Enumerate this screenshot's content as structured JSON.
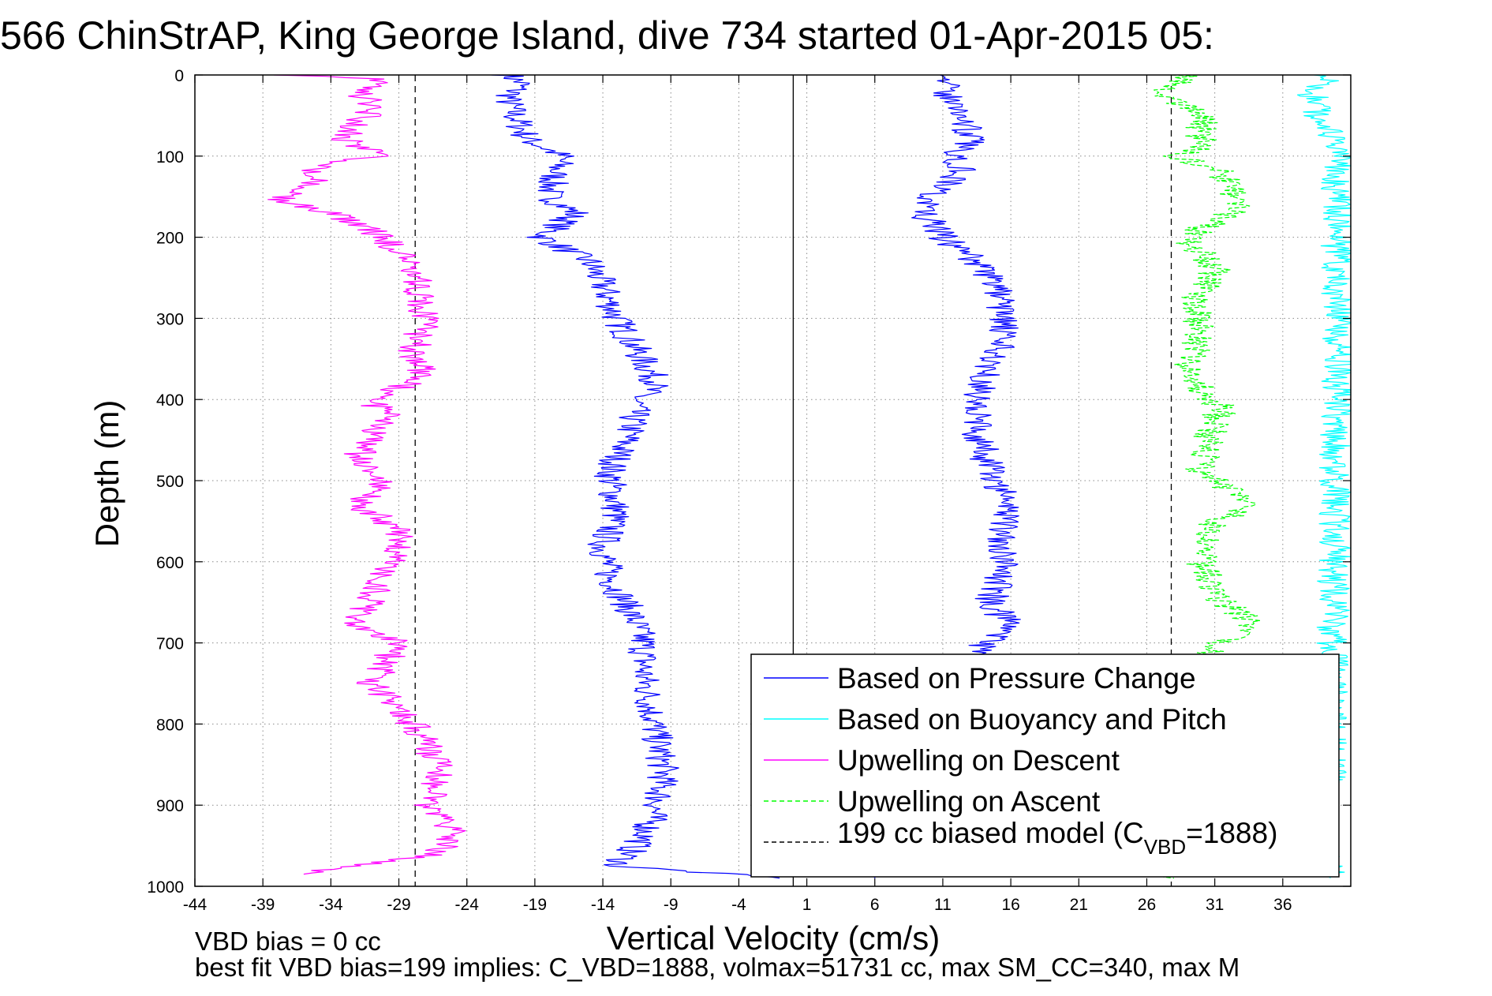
{
  "chart_data": {
    "type": "line",
    "title": "566 ChinStrAP, King George Island, dive 734 started 01-Apr-2015 05:",
    "xlabel": "Vertical Velocity (cm/s)",
    "ylabel": "Depth (m)",
    "xlim": [
      -44,
      41
    ],
    "ylim": [
      0,
      1000
    ],
    "y_reversed": true,
    "grid": true,
    "x_ticks": [
      -44,
      -39,
      -34,
      -29,
      -24,
      -19,
      -14,
      -9,
      -4,
      1,
      6,
      11,
      16,
      21,
      26,
      31,
      36
    ],
    "y_ticks": [
      0,
      100,
      200,
      300,
      400,
      500,
      600,
      700,
      800,
      900,
      1000
    ],
    "x_tick_labels": [
      "-44",
      "-39",
      "-34",
      "-29",
      "-24",
      "-19",
      "-14",
      "-9",
      "-4",
      "1",
      "6",
      "11",
      "16",
      "21",
      "26",
      "31",
      "36"
    ],
    "y_tick_labels": [
      "0",
      "100",
      "200",
      "300",
      "400",
      "500",
      "600",
      "700",
      "800",
      "900",
      "1000"
    ],
    "reference_lines": [
      {
        "type": "vertical",
        "x": 0,
        "color": "#000000",
        "style": "solid"
      },
      {
        "type": "vertical",
        "x": -27.8,
        "color": "#000000",
        "style": "dashed"
      },
      {
        "type": "vertical",
        "x": 27.8,
        "color": "#000000",
        "style": "dashed"
      }
    ],
    "legend": {
      "position": "bottom-right",
      "entries": [
        {
          "label": "Based on Pressure Change",
          "color": "#0000ff",
          "style": "solid"
        },
        {
          "label": "Based on Buoyancy and Pitch",
          "color": "#00ffff",
          "style": "solid"
        },
        {
          "label": "Upwelling on Descent",
          "color": "#ff00ff",
          "style": "solid"
        },
        {
          "label": "Upwelling on Ascent",
          "color": "#00ff00",
          "style": "dashed"
        },
        {
          "label_main": "199 cc biased model (C",
          "label_sub": "VBD",
          "label_end": "=1888)",
          "color": "#000000",
          "style": "dashed"
        }
      ]
    },
    "series": [
      {
        "color": "#0000ff",
        "style": "solid",
        "depth": [
          0,
          10,
          30,
          50,
          80,
          100,
          120,
          150,
          170,
          200,
          230,
          260,
          300,
          340,
          380,
          400,
          440,
          490,
          540,
          580,
          620,
          660,
          700,
          740,
          780,
          820,
          860,
          900,
          940,
          975,
          990
        ],
        "velocity": [
          -21,
          -20,
          -21,
          -20.5,
          -19.5,
          -17,
          -17.5,
          -18,
          -16,
          -18.5,
          -15,
          -14,
          -13,
          -11.5,
          -10,
          -11.5,
          -12,
          -13.5,
          -13,
          -14,
          -13.5,
          -12,
          -11,
          -11,
          -10.5,
          -10,
          -9.5,
          -10,
          -11,
          -13,
          -1
        ]
      },
      {
        "color": "#0000ff",
        "style": "solid",
        "depth": [
          0,
          10,
          30,
          50,
          80,
          100,
          120,
          150,
          170,
          200,
          230,
          260,
          300,
          340,
          380,
          400,
          440,
          490,
          530,
          560,
          600,
          650,
          680,
          700,
          990
        ],
        "velocity": [
          12,
          11,
          11.5,
          12.5,
          13,
          12,
          12.5,
          10,
          9.5,
          11,
          13.5,
          15,
          15.5,
          15,
          14,
          13.5,
          13.5,
          14.5,
          16,
          15.5,
          15.5,
          14.5,
          16,
          14,
          6
        ]
      },
      {
        "color": "#00ffff",
        "style": "solid",
        "depth": [
          0,
          10,
          20,
          100,
          185,
          370,
          870,
          900,
          950,
          990
        ],
        "velocity": [
          39.5,
          39,
          38,
          40,
          40,
          40,
          39.5,
          38,
          39,
          39.5
        ]
      },
      {
        "color": "#ff00ff",
        "style": "solid",
        "depth": [
          0,
          5,
          20,
          40,
          60,
          80,
          100,
          110,
          130,
          155,
          170,
          200,
          240,
          270,
          300,
          340,
          370,
          400,
          420,
          470,
          500,
          530,
          560,
          600,
          640,
          680,
          700,
          750,
          790,
          820,
          860,
          900,
          930,
          960,
          985
        ],
        "velocity": [
          -37,
          -30,
          -32,
          -31,
          -32,
          -33,
          -30,
          -35,
          -35,
          -38,
          -34,
          -30,
          -28,
          -27.5,
          -27,
          -28,
          -27,
          -31,
          -30,
          -32,
          -30,
          -32,
          -29,
          -29.5,
          -31,
          -32,
          -29,
          -31,
          -28.5,
          -27,
          -26,
          -27,
          -25,
          -26,
          -36
        ]
      },
      {
        "color": "#00ff00",
        "style": "dashed",
        "depth": [
          0,
          20,
          50,
          90,
          100,
          120,
          160,
          200,
          240,
          280,
          320,
          360,
          380,
          410,
          450,
          490,
          525,
          560,
          600,
          640,
          680,
          700,
          990
        ],
        "velocity": [
          29,
          27,
          30,
          30,
          28,
          31.5,
          33,
          29,
          31,
          29.5,
          30,
          29,
          29.5,
          31.5,
          30.5,
          30,
          33.5,
          30.5,
          30,
          31,
          34,
          31,
          28
        ]
      }
    ]
  },
  "footer": {
    "line1": "VBD bias = 0 cc",
    "line2": "best fit VBD bias=199 implies: C_VBD=1888, volmax=51731 cc, max SM_CC=340, max M"
  }
}
